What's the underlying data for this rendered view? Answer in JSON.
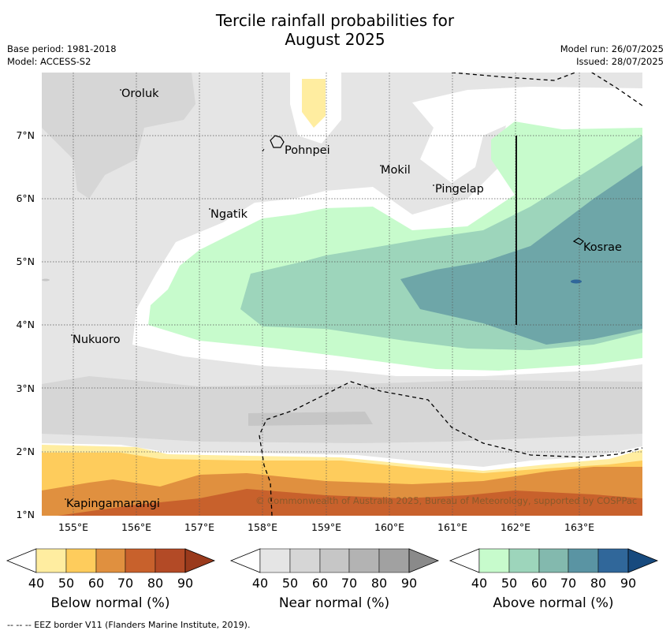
{
  "title_line1": "Tercile rainfall probabilities for",
  "title_line2": "August 2025",
  "base_period": "Base period: 1981-2018",
  "model": "Model: ACCESS-S2",
  "model_run": "Model run: 26/07/2025",
  "issued": "Issued: 28/07/2025",
  "y_ticks": [
    "7°N",
    "6°N",
    "5°N",
    "4°N",
    "3°N",
    "2°N",
    "1°N"
  ],
  "x_ticks": [
    "155°E",
    "156°E",
    "157°E",
    "158°E",
    "159°E",
    "160°E",
    "161°E",
    "162°E",
    "163°E"
  ],
  "places": {
    "oroluk": "Oroluk",
    "pohnpei": "Pohnpei",
    "mokil": "Mokil",
    "pingelap": "Pingelap",
    "ngatik": "Ngatik",
    "kosrae": "Kosrae",
    "nukuoro": "Nukuoro",
    "kapingamarangi": "Kapingamarangi"
  },
  "copyright": "© Commonwealth of Australia 2025, Bureau of Meteorology, supported by COSPPac",
  "colorbars": {
    "below": {
      "label": "Below normal (%)",
      "ticks": [
        "40",
        "50",
        "60",
        "70",
        "80",
        "90"
      ],
      "colors": [
        "#ffeda0",
        "#fecc5c",
        "#e0903f",
        "#c8612c",
        "#b34a26",
        "#9a3a1c"
      ]
    },
    "near": {
      "label": "Near normal (%)",
      "ticks": [
        "40",
        "50",
        "60",
        "70",
        "80",
        "90"
      ],
      "colors": [
        "#e5e5e5",
        "#d6d6d6",
        "#c6c6c6",
        "#b3b3b3",
        "#a1a1a1",
        "#8a8a8a"
      ]
    },
    "above": {
      "label": "Above normal (%)",
      "ticks": [
        "40",
        "50",
        "60",
        "70",
        "80",
        "90"
      ],
      "colors": [
        "#c7fbcc",
        "#9dd5bb",
        "#83b9ae",
        "#5a94a3",
        "#30679a",
        "#174a7e"
      ]
    }
  },
  "footer": "--  --  -- EEZ border V11 (Flanders Marine Institute, 2019)."
}
